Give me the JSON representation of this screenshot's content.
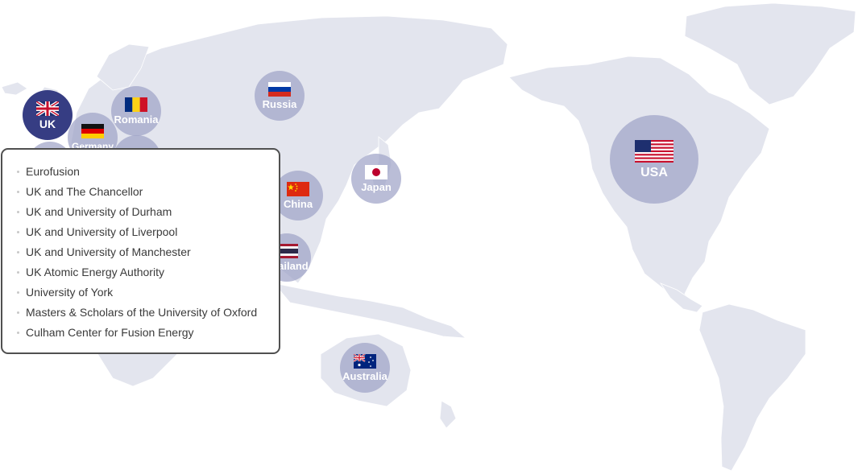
{
  "map": {
    "land_color": "#e3e5ee",
    "marker_color": "#a0a4c8",
    "active_marker_color": "#363d83",
    "markers": [
      {
        "key": "usa",
        "label": "USA",
        "flag": "us-flag-icon",
        "active": false
      },
      {
        "key": "uk",
        "label": "UK",
        "flag": "uk-flag-icon",
        "active": true
      },
      {
        "key": "romania",
        "label": "Romania",
        "flag": "romania-flag-icon",
        "active": false
      },
      {
        "key": "germany",
        "label": "Germany",
        "flag": "germany-flag-icon",
        "active": false
      },
      {
        "key": "russia",
        "label": "Russia",
        "flag": "russia-flag-icon",
        "active": false
      },
      {
        "key": "china",
        "label": "China",
        "flag": "china-flag-icon",
        "active": false
      },
      {
        "key": "japan",
        "label": "Japan",
        "flag": "japan-flag-icon",
        "active": false
      },
      {
        "key": "thailand",
        "label": "Thailand",
        "flag": "thailand-flag-icon",
        "active": false
      },
      {
        "key": "australia",
        "label": "Australia",
        "flag": "australia-flag-icon",
        "active": false
      }
    ]
  },
  "popup": {
    "items": [
      "Eurofusion",
      "UK and The Chancellor",
      "UK and University of Durham",
      "UK and University of Liverpool",
      "UK and University of Manchester",
      "UK Atomic Energy Authority",
      "University of York",
      "Masters & Scholars of the University of Oxford",
      "Culham Center for Fusion Energy"
    ]
  }
}
